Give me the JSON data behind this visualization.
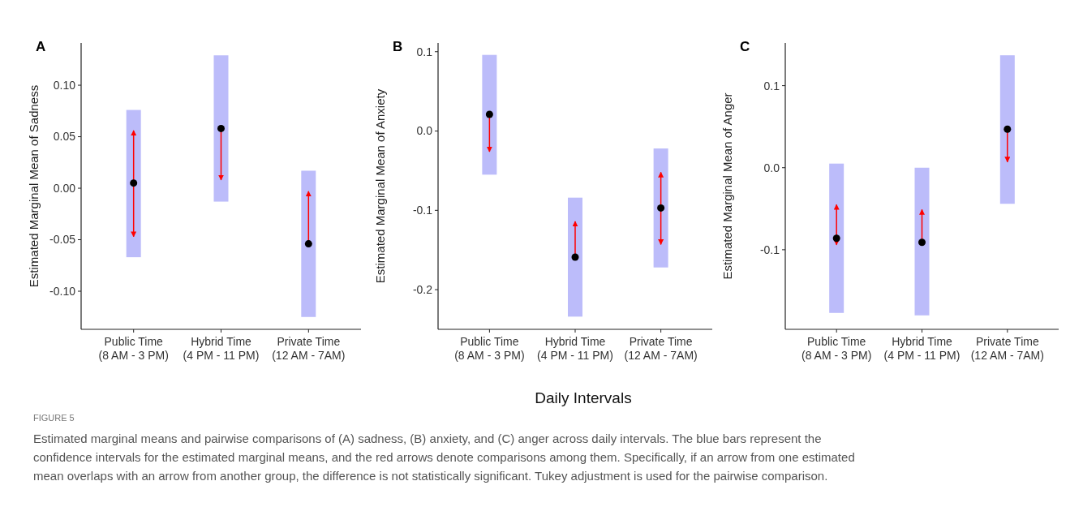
{
  "chart_data": [
    {
      "type": "bar",
      "title": "A",
      "ylabel": "Estimated Marginal Mean of Sadness",
      "categories": [
        "Public Time\n(8 AM - 3 PM)",
        "Hybrid Time\n(4 PM - 11 PM)",
        "Private Time\n(12 AM - 7AM)"
      ],
      "ylim": [
        -0.137,
        0.141
      ],
      "yticks": [
        {
          "value": -0.1,
          "label": "-0.10"
        },
        {
          "value": -0.05,
          "label": "-0.05"
        },
        {
          "value": 0,
          "label": "0.00"
        },
        {
          "value": 0.05,
          "label": "0.05"
        },
        {
          "value": 0.1,
          "label": "0.10"
        }
      ],
      "series": [
        {
          "color": "#bcbcfa",
          "base": [
            -0.067,
            -0.013,
            -0.125
          ],
          "values": [
            0.143,
            0.142,
            0.142
          ]
        },
        {
          "type": "scatter",
          "marker": "circle",
          "color": "#000000",
          "x": [
            "Public Time\n(8 AM - 3 PM)",
            "Hybrid Time\n(4 PM - 11 PM)",
            "Private Time\n(12 AM - 7AM)"
          ],
          "values": [
            0.005,
            0.058,
            -0.054
          ],
          "errors": [
            [
              -0.047,
              0.056
            ],
            [
              0.008,
              0.058
            ],
            [
              -0.054,
              -0.003
            ]
          ]
        }
      ],
      "annotations": [
        "FIGURE 5",
        "Estimated marginal means and pairwise comparisons of (A) sadness, (B) anxiety, and (C) anger across daily intervals. The blue bars represent the confidence intervals for the estimated marginal means, and the red arrows denote comparisons among them. Specifically, if an arrow from one estimated mean overlaps with an arrow from another group, the difference is not statistically significant. Tukey adjustment is used for the pairwise comparison."
      ]
    },
    {
      "type": "bar",
      "title": "B",
      "ylabel": "Estimated Marginal Mean of Anxiety",
      "xlabel": "Daily Intervals",
      "categories": [
        "Public Time\n(8 AM - 3 PM)",
        "Hybrid Time\n(4 PM - 11 PM)",
        "Private Time\n(12 AM - 7AM)"
      ],
      "ylim": [
        -0.25,
        0.111
      ],
      "yticks": [
        -0.2,
        -0.1,
        {
          "value": 0,
          "label": "0.0"
        },
        0.1
      ],
      "series": [
        {
          "color": "#bcbcfa",
          "base": [
            -0.055,
            -0.234,
            -0.172
          ],
          "values": [
            0.151,
            0.15,
            0.15
          ]
        },
        {
          "type": "scatter",
          "marker": "circle",
          "color": "#000000",
          "x": [
            "Public Time\n(8 AM - 3 PM)",
            "Hybrid Time\n(4 PM - 11 PM)",
            "Private Time\n(12 AM - 7AM)"
          ],
          "values": [
            0.021,
            -0.159,
            -0.097
          ],
          "errors": [
            [
              -0.026,
              0.021
            ],
            [
              -0.159,
              -0.114
            ],
            [
              -0.143,
              -0.052
            ]
          ]
        }
      ]
    },
    {
      "type": "bar",
      "title": "C",
      "ylabel": "Estimated Marginal Mean of Anger",
      "categories": [
        "Public Time\n(8 AM - 3 PM)",
        "Hybrid Time\n(4 PM - 11 PM)",
        "Private Time\n(12 AM - 7AM)"
      ],
      "ylim": [
        -0.197,
        0.152
      ],
      "yticks": [
        -0.1,
        {
          "value": 0,
          "label": "0.0"
        },
        0.1
      ],
      "series": [
        {
          "color": "#bcbcfa",
          "base": [
            -0.177,
            -0.18,
            -0.044
          ],
          "values": [
            0.182,
            0.18,
            0.181
          ]
        },
        {
          "type": "scatter",
          "marker": "circle",
          "color": "#000000",
          "x": [
            "Public Time\n(8 AM - 3 PM)",
            "Hybrid Time\n(4 PM - 11 PM)",
            "Private Time\n(12 AM - 7AM)"
          ],
          "values": [
            -0.086,
            -0.091,
            0.047
          ],
          "errors": [
            [
              -0.094,
              -0.045
            ],
            [
              -0.091,
              -0.051
            ],
            [
              0.007,
              0.047
            ]
          ]
        }
      ]
    }
  ]
}
